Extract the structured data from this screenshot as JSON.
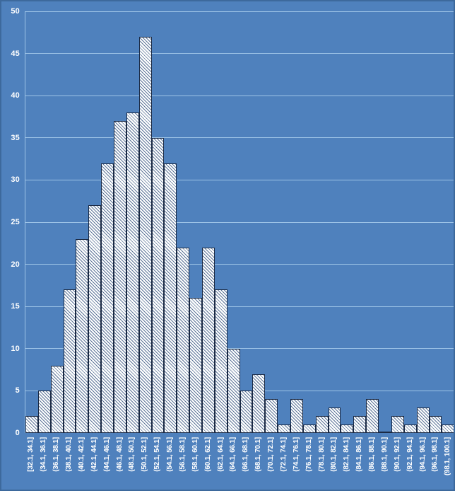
{
  "chart": {
    "colors": {
      "background": "#4F81BD",
      "frame_border": "#3D699C",
      "gridline": "#9DC3E6",
      "bar_fill": "#FDFEFE",
      "bar_hatch": "#5D7498",
      "bar_border": "#1B2A44",
      "text": "#FFFFFF"
    }
  },
  "chart_data": {
    "type": "bar",
    "subtype": "histogram",
    "title": "",
    "xlabel": "",
    "ylabel": "",
    "legend": "none",
    "grid": "horizontal",
    "ylim": [
      0,
      50
    ],
    "yticks": [
      0,
      5,
      10,
      15,
      20,
      25,
      30,
      35,
      40,
      45,
      50
    ],
    "categories": [
      "[32.1, 34.1]",
      "(34.1, 36.1]",
      "(36.1, 38.1]",
      "(38.1, 40.1]",
      "(40.1, 42.1]",
      "(42.1, 44.1]",
      "(44.1, 46.1]",
      "(46.1, 48.1]",
      "(48.1, 50.1]",
      "(50.1, 52.1]",
      "(52.1, 54.1]",
      "(54.1, 56.1]",
      "(56.1, 58.1]",
      "(58.1, 60.1]",
      "(60.1, 62.1]",
      "(62.1, 64.1]",
      "(64.1, 66.1]",
      "(66.1, 68.1]",
      "(68.1, 70.1]",
      "(70.1, 72.1]",
      "(72.1, 74.1]",
      "(74.1, 76.1]",
      "(76.1, 78.1]",
      "(78.1, 80.1]",
      "(80.1, 82.1]",
      "(82.1, 84.1]",
      "(84.1, 86.1]",
      "(86.1, 88.1]",
      "(88.1, 90.1]",
      "(90.1, 92.1]",
      "(92.1, 94.1]",
      "(94.1, 96.1]",
      "(96.1, 98.1]",
      "(98.1, 100.1]"
    ],
    "values": [
      2,
      5,
      8,
      17,
      23,
      27,
      32,
      37,
      38,
      47,
      35,
      32,
      22,
      16,
      22,
      17,
      10,
      5,
      7,
      4,
      1,
      4,
      1,
      2,
      3,
      1,
      2,
      4,
      0,
      2,
      1,
      3,
      2,
      1
    ]
  }
}
